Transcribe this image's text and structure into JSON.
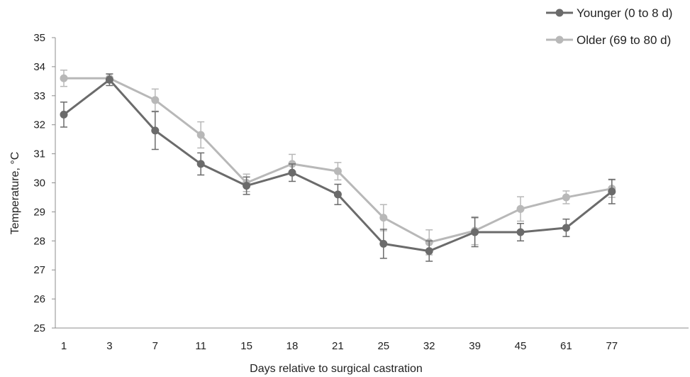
{
  "chart_data": {
    "type": "line",
    "xlabel": "Days relative to surgical castration",
    "ylabel": "Temperature, °C",
    "ylim": [
      25,
      35
    ],
    "y_ticks": [
      25,
      26,
      27,
      28,
      29,
      30,
      31,
      32,
      33,
      34,
      35
    ],
    "x": [
      1,
      3,
      7,
      11,
      15,
      18,
      21,
      25,
      32,
      39,
      45,
      61,
      77
    ],
    "x_tick_labels": [
      "1",
      "3",
      "7",
      "11",
      "15",
      "18",
      "21",
      "25",
      "32",
      "39",
      "45",
      "61",
      "77"
    ],
    "grid": false,
    "legend_position": "top-right",
    "series": [
      {
        "name": "Younger (0 to 8 d)",
        "color": "#6b6b6b",
        "values": [
          32.35,
          33.55,
          31.8,
          30.65,
          29.9,
          30.35,
          29.6,
          27.9,
          27.65,
          28.3,
          28.3,
          28.45,
          29.7
        ],
        "errors": [
          0.43,
          0.2,
          0.65,
          0.38,
          0.3,
          0.3,
          0.35,
          0.5,
          0.35,
          0.5,
          0.3,
          0.3,
          0.42
        ]
      },
      {
        "name": "Older (69 to 80 d)",
        "color": "#b8b8b8",
        "values": [
          33.6,
          33.6,
          32.85,
          31.65,
          30.0,
          30.65,
          30.4,
          28.8,
          27.95,
          28.35,
          29.1,
          29.5,
          29.8
        ],
        "errors": [
          0.28,
          0.15,
          0.38,
          0.45,
          0.3,
          0.33,
          0.3,
          0.45,
          0.43,
          0.48,
          0.42,
          0.22,
          0.3
        ]
      }
    ]
  }
}
